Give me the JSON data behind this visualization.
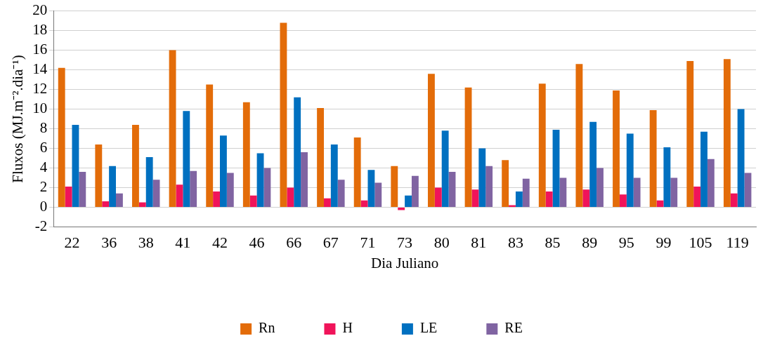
{
  "chart_data": {
    "type": "bar",
    "xlabel": "Dia Juliano",
    "ylabel": "Fluxos (MJ.m⁻².dia⁻¹)",
    "categories": [
      "22",
      "36",
      "38",
      "41",
      "42",
      "46",
      "66",
      "67",
      "71",
      "73",
      "80",
      "81",
      "83",
      "85",
      "89",
      "95",
      "99",
      "105",
      "119"
    ],
    "series": [
      {
        "name": "Rn",
        "color": "#e36c09",
        "values": [
          14.2,
          6.4,
          8.4,
          16,
          12.5,
          10.7,
          18.8,
          10.1,
          7.1,
          4.2,
          13.6,
          12.2,
          4.8,
          12.6,
          14.6,
          11.9,
          9.9,
          14.9,
          15.1
        ]
      },
      {
        "name": "H",
        "color": "#f0145a",
        "values": [
          2.1,
          0.6,
          0.5,
          2.3,
          1.6,
          1.2,
          2,
          0.9,
          0.7,
          -0.3,
          2,
          1.8,
          0.2,
          1.6,
          1.8,
          1.3,
          0.7,
          2.1,
          1.4
        ]
      },
      {
        "name": "LE",
        "color": "#0070c0",
        "values": [
          8.4,
          4.2,
          5.1,
          9.8,
          7.3,
          5.5,
          11.2,
          6.4,
          3.8,
          1.2,
          7.8,
          6,
          1.6,
          7.9,
          8.7,
          7.5,
          6.1,
          7.7,
          10
        ]
      },
      {
        "name": "RE",
        "color": "#8064a2",
        "values": [
          3.6,
          1.4,
          2.8,
          3.7,
          3.5,
          4,
          5.6,
          2.8,
          2.5,
          3.2,
          3.6,
          4.2,
          2.9,
          3,
          4,
          3,
          3,
          4.9,
          3.5
        ]
      }
    ],
    "ylim": [
      -2,
      20
    ],
    "yticks": [
      -2,
      0,
      2,
      4,
      6,
      8,
      10,
      12,
      14,
      16,
      18,
      20
    ],
    "grid": "y",
    "legend": "bottom"
  }
}
